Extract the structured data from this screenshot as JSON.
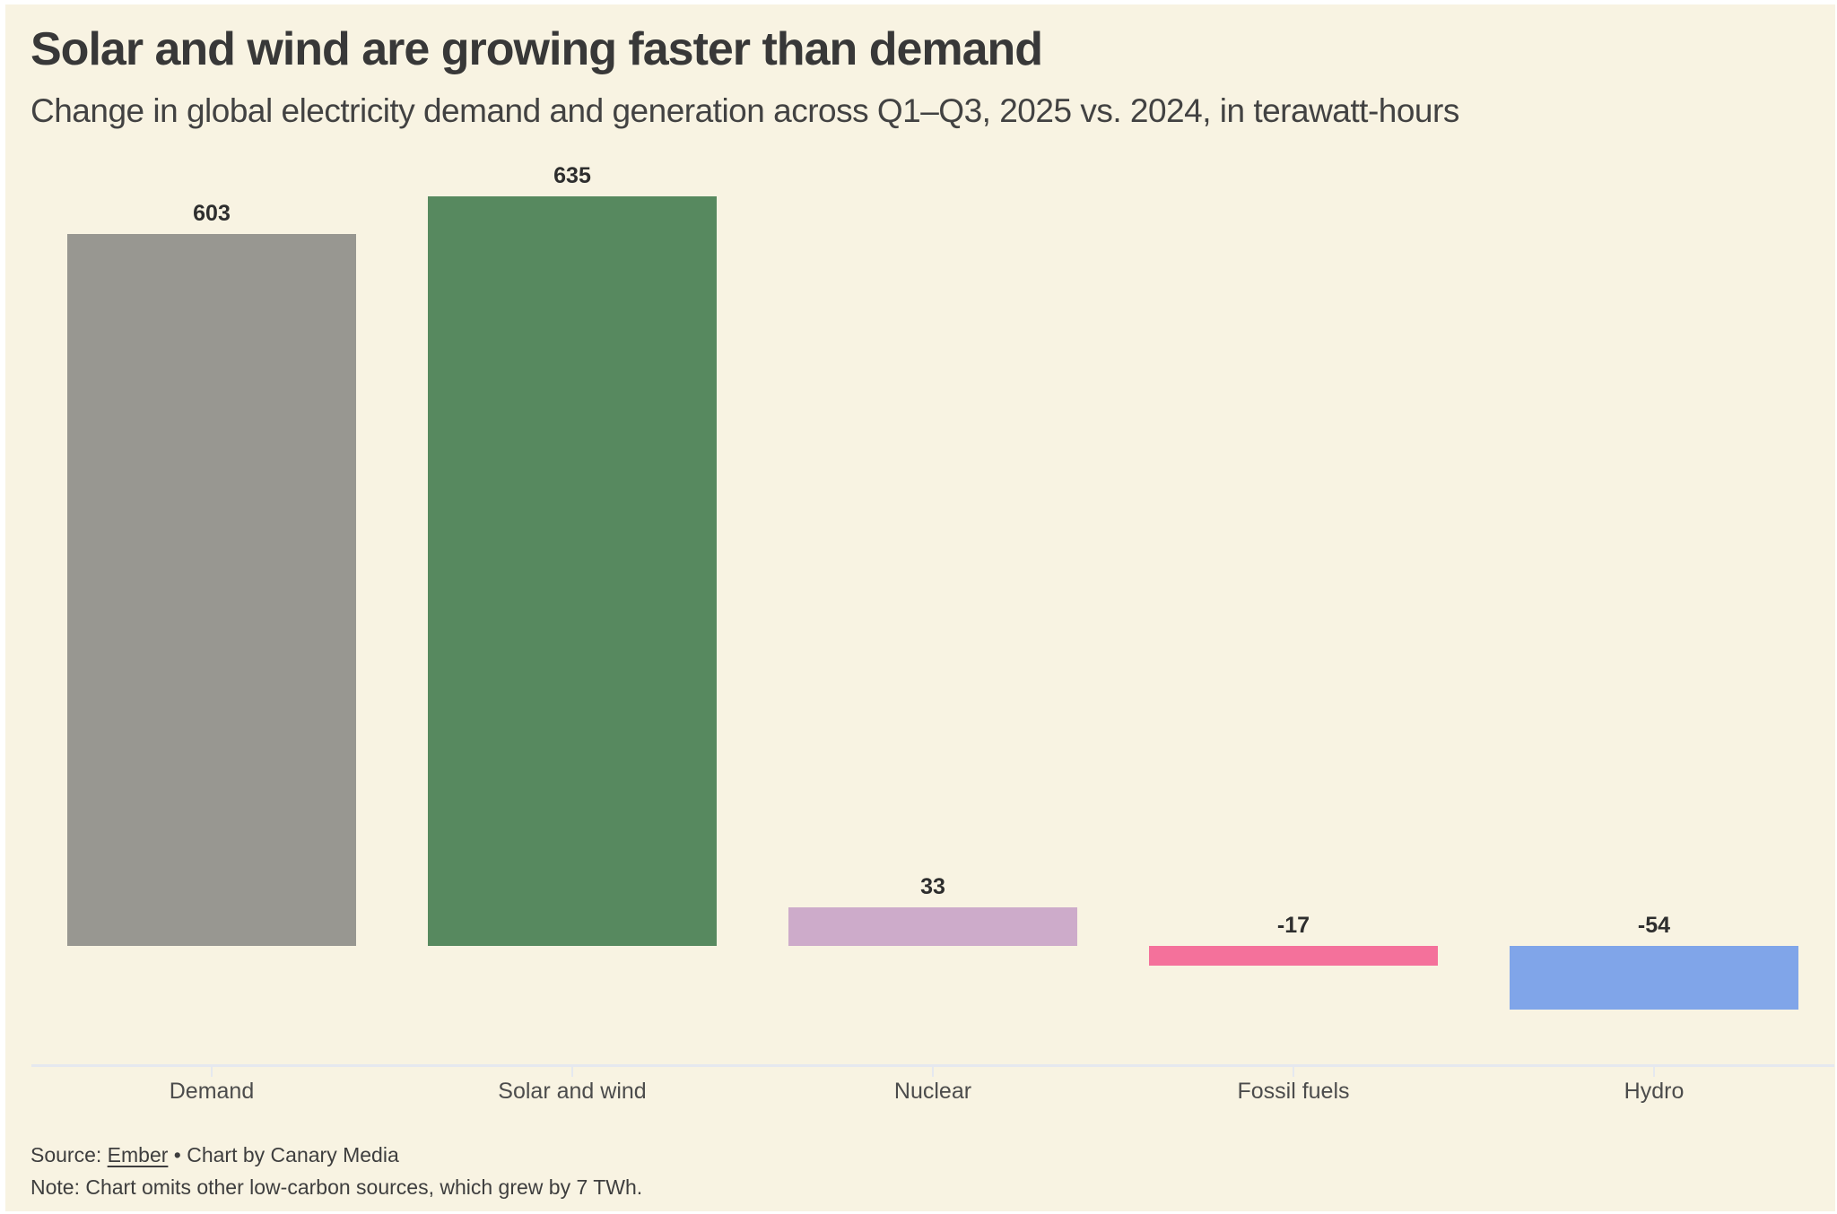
{
  "page": {
    "title": "Solar and wind are growing faster than demand",
    "subtitle": "Change in global electricity demand and generation across Q1–Q3, 2025 vs. 2024, in terawatt-hours",
    "source_prefix": "Source: ",
    "source_link": "Ember",
    "source_suffix": " • Chart by Canary Media",
    "note": "Note: Chart omits other low-carbon sources, which grew by 7 TWh."
  },
  "colors": {
    "background": "#f8f3e2",
    "page_border": "#ffffff",
    "title_text": "#383838",
    "subtitle_text": "#424242",
    "value_label_text": "#2e2e2e",
    "category_label_text": "#4c4c4c",
    "source_text": "#3e3e3e",
    "axis_line": "#e5e8ef"
  },
  "chart_data": {
    "type": "bar",
    "title": "Solar and wind are growing faster than demand",
    "subtitle": "Change in global electricity demand and generation across Q1–Q3, 2025 vs. 2024, in terawatt-hours",
    "unit": "terawatt-hours",
    "categories": [
      "Demand",
      "Solar and wind",
      "Nuclear",
      "Fossil fuels",
      "Hydro"
    ],
    "values": [
      603,
      635,
      33,
      -17,
      -54
    ],
    "value_labels": [
      "603",
      "635",
      "33",
      "-17",
      "-54"
    ],
    "bar_colors": [
      "#989791",
      "#57895f",
      "#cdabca",
      "#f4719b",
      "#80a5e9"
    ],
    "xlabel": "",
    "ylabel": "",
    "ylim": [
      -100,
      700
    ],
    "grid": false,
    "legend": false,
    "baseline": 0,
    "source": "Ember",
    "credit": "Chart by Canary Media",
    "note": "Chart omits other low-carbon sources, which grew by 7 TWh."
  }
}
